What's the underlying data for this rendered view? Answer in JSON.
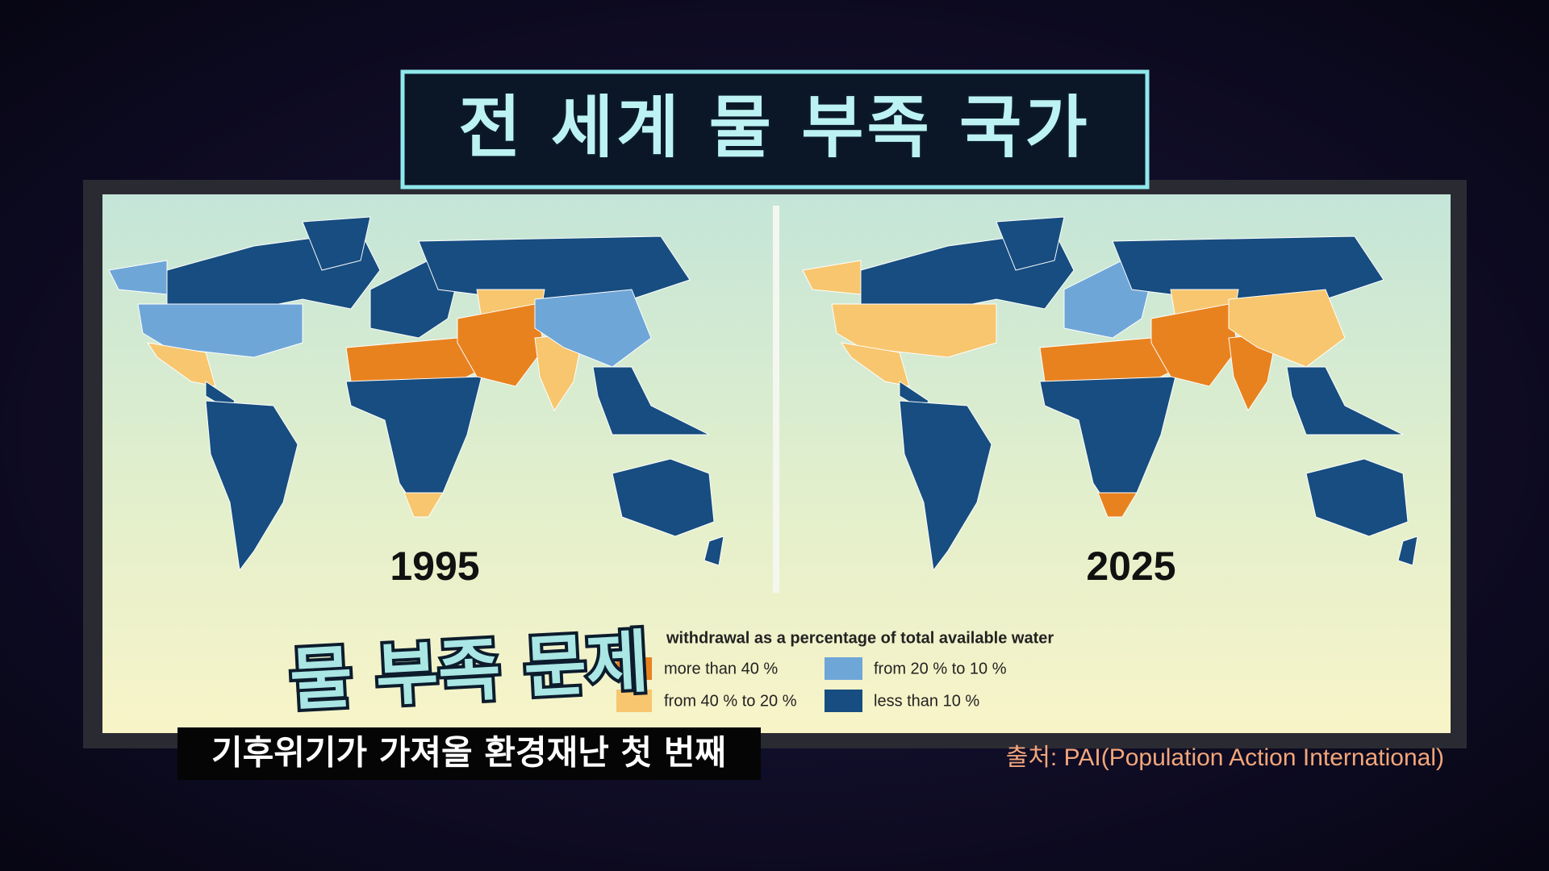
{
  "header": {
    "title": "전 세계 물 부족 국가"
  },
  "maps": [
    {
      "year": "1995"
    },
    {
      "year": "2025"
    }
  ],
  "legend": {
    "title": "withdrawal as a percentage of total available water",
    "items": [
      "more than 40 %",
      "from 40 % to 20 %",
      "from 20 % to 10 %",
      "less than 10 %"
    ]
  },
  "caption": {
    "headline": "물 부족 문제",
    "subtitle": "기후위기가 가져올 환경재난 첫 번째"
  },
  "source": "출처: PAI(Population Action International)"
}
